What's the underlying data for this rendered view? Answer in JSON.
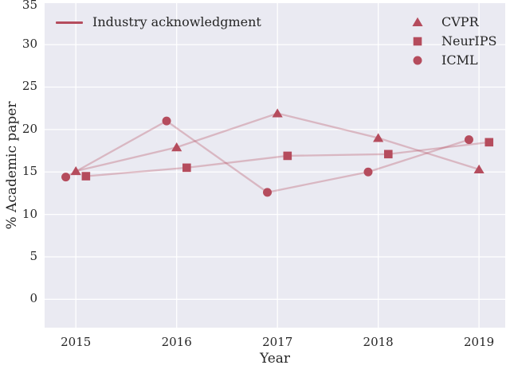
{
  "figure": {
    "background": "#ffffff",
    "plot_background": "#eaeaf2",
    "grid_color": "#ffffff",
    "text_color": "#262626",
    "accent_color": "#b54c5d",
    "faded_line_alpha": 0.32
  },
  "chart_data": {
    "type": "line",
    "title": "",
    "xlabel": "Year",
    "ylabel": "% Academic paper",
    "x": [
      2015,
      2016,
      2017,
      2018,
      2019
    ],
    "xtick_labels": [
      "2015",
      "2016",
      "2017",
      "2018",
      "2019"
    ],
    "yticks": [
      0,
      5,
      10,
      15,
      20,
      25,
      30,
      35
    ],
    "xlim": [
      2014.69,
      2019.26
    ],
    "ylim": [
      -3.34,
      34.88
    ],
    "grid": true,
    "line_legend": {
      "label": "Industry acknowledgment",
      "position": "upper-left"
    },
    "legend_position": "upper-right",
    "series": [
      {
        "name": "CVPR",
        "marker": "triangle",
        "x_offset": 0.0,
        "values": [
          15.1,
          17.9,
          21.9,
          19.0,
          15.3
        ]
      },
      {
        "name": "NeurIPS",
        "marker": "square",
        "x_offset": 0.1,
        "values": [
          14.5,
          15.5,
          16.9,
          17.1,
          18.5
        ]
      },
      {
        "name": "ICML",
        "marker": "circle",
        "x_offset": -0.1,
        "values": [
          14.4,
          21.0,
          12.6,
          15.0,
          18.8
        ]
      }
    ]
  }
}
